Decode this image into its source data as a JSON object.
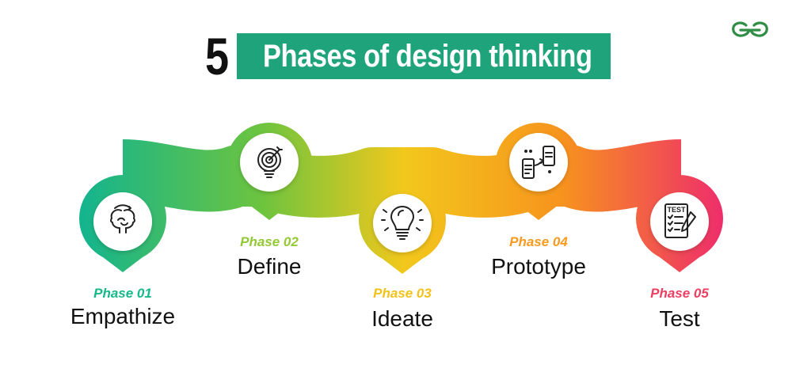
{
  "title": {
    "number": "5",
    "text": "Phases of design thinking"
  },
  "logo": {
    "icon": "geeksforgeeks-logo-icon",
    "color": "#2f8d46"
  },
  "phases": [
    {
      "label": "Phase 01",
      "name": "Empathize",
      "icon": "empathy-heads-icon",
      "color": "#17b98a"
    },
    {
      "label": "Phase 02",
      "name": "Define",
      "icon": "target-bulb-icon",
      "color": "#93c934"
    },
    {
      "label": "Phase 03",
      "name": "Ideate",
      "icon": "lightbulb-icon",
      "color": "#f2c21b"
    },
    {
      "label": "Phase 04",
      "name": "Prototype",
      "icon": "devices-prototype-icon",
      "color": "#f79a1e"
    },
    {
      "label": "Phase 05",
      "name": "Test",
      "icon": "test-checklist-icon",
      "color": "#ee3f62"
    }
  ],
  "gradient": {
    "start": "#13b48f",
    "c2": "#6cc43f",
    "c3": "#f2c81c",
    "c4": "#f7941d",
    "end": "#ee2a6e"
  },
  "title_bar_color": "#1fa37b"
}
